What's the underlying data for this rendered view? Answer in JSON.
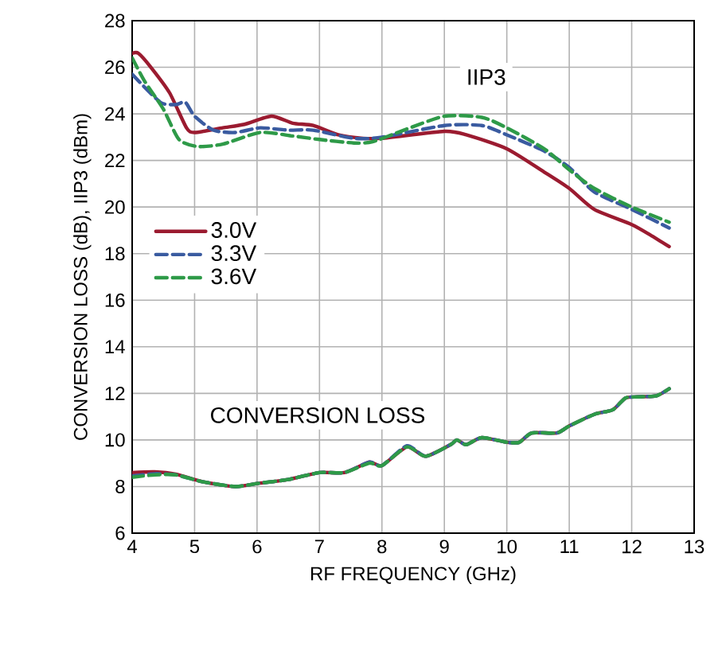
{
  "chart_data": {
    "type": "line",
    "xlabel": "RF FREQUENCY (GHz)",
    "ylabel": "CONVERSION LOSS (dB), IIP3 (dBm)",
    "xlim": [
      4,
      13
    ],
    "ylim": [
      6,
      28
    ],
    "xticks": [
      4,
      5,
      6,
      7,
      8,
      9,
      10,
      11,
      12,
      13
    ],
    "yticks": [
      6,
      8,
      10,
      12,
      14,
      16,
      18,
      20,
      22,
      24,
      26,
      28
    ],
    "grid": true,
    "legend": "left",
    "annotations": [
      "IIP3",
      "CONVERSION LOSS"
    ],
    "series": [
      {
        "name": "3.0V",
        "color": "#9b1b30",
        "line_style": "solid",
        "x": [
          4.0,
          4.1,
          4.3,
          4.6,
          4.87,
          5.0,
          5.45,
          5.8,
          6.23,
          6.57,
          6.9,
          7.3,
          7.7,
          8.0,
          9.0,
          9.35,
          10.0,
          10.6,
          11.0,
          11.4,
          12.0,
          12.3,
          12.6
        ],
        "values": [
          26.6,
          26.6,
          26.0,
          24.9,
          23.4,
          23.2,
          23.4,
          23.55,
          23.9,
          23.6,
          23.5,
          23.1,
          22.95,
          22.95,
          23.25,
          23.1,
          22.5,
          21.5,
          20.8,
          19.9,
          19.25,
          18.8,
          18.3
        ]
      },
      {
        "name": "3.3V",
        "color": "#3a5ba0",
        "line_style": "dashed",
        "x": [
          4.0,
          4.45,
          4.7,
          4.85,
          5.0,
          5.3,
          5.65,
          6.05,
          6.5,
          6.9,
          7.55,
          8.0,
          9.0,
          9.6,
          10.0,
          10.6,
          11.0,
          11.4,
          12.0,
          12.6
        ],
        "values": [
          25.7,
          24.5,
          24.4,
          24.5,
          23.9,
          23.3,
          23.2,
          23.4,
          23.3,
          23.3,
          22.95,
          23.0,
          23.5,
          23.5,
          23.1,
          22.4,
          21.7,
          20.65,
          19.9,
          19.1
        ]
      },
      {
        "name": "3.6V",
        "color": "#2e9a48",
        "line_style": "dashed",
        "x": [
          4.0,
          4.2,
          4.5,
          4.75,
          5.05,
          5.45,
          6.05,
          6.57,
          7.0,
          7.55,
          7.85,
          8.35,
          9.0,
          9.6,
          10.0,
          10.6,
          11.0,
          11.4,
          12.0,
          12.6
        ],
        "values": [
          26.4,
          25.4,
          24.2,
          22.9,
          22.6,
          22.7,
          23.2,
          23.05,
          22.9,
          22.75,
          22.8,
          23.3,
          23.9,
          23.85,
          23.4,
          22.5,
          21.6,
          20.8,
          20.0,
          19.35
        ]
      },
      {
        "color": "#9b1b30",
        "line_style": "solid",
        "x": [
          4.0,
          4.36,
          4.7,
          5.14,
          5.65,
          6.0,
          6.5,
          7.0,
          7.4,
          7.8,
          8.0,
          8.4,
          8.7,
          9.1,
          9.2,
          9.35,
          9.6,
          10.0,
          10.2,
          10.4,
          10.8,
          11.0,
          11.4,
          11.7,
          11.9,
          12.1,
          12.4,
          12.6
        ],
        "values": [
          8.6,
          8.63,
          8.53,
          8.2,
          8.0,
          8.13,
          8.3,
          8.6,
          8.6,
          9.05,
          8.9,
          9.7,
          9.3,
          9.8,
          10.0,
          9.8,
          10.1,
          9.9,
          9.9,
          10.3,
          10.3,
          10.6,
          11.1,
          11.3,
          11.8,
          11.85,
          11.9,
          12.2
        ]
      },
      {
        "color": "#3a5ba0",
        "line_style": "dashed",
        "x": [
          4.0,
          4.36,
          4.7,
          5.14,
          5.65,
          6.0,
          6.5,
          7.0,
          7.4,
          7.8,
          8.0,
          8.4,
          8.7,
          9.1,
          9.2,
          9.35,
          9.6,
          10.0,
          10.2,
          10.4,
          10.8,
          11.0,
          11.4,
          11.7,
          11.9,
          12.1,
          12.4,
          12.6
        ],
        "values": [
          8.45,
          8.55,
          8.5,
          8.2,
          8.0,
          8.13,
          8.3,
          8.6,
          8.6,
          9.05,
          8.9,
          9.75,
          9.3,
          9.8,
          10.0,
          9.8,
          10.1,
          9.9,
          9.9,
          10.3,
          10.3,
          10.6,
          11.1,
          11.3,
          11.8,
          11.85,
          11.9,
          12.2
        ]
      },
      {
        "color": "#2e9a48",
        "line_style": "dashed",
        "x": [
          4.0,
          4.36,
          4.7,
          5.14,
          5.65,
          6.0,
          6.5,
          7.0,
          7.4,
          7.8,
          8.0,
          8.4,
          8.7,
          9.1,
          9.2,
          9.35,
          9.6,
          10.0,
          10.2,
          10.4,
          10.8,
          11.0,
          11.4,
          11.7,
          11.9,
          12.1,
          12.4,
          12.6
        ],
        "values": [
          8.4,
          8.5,
          8.5,
          8.2,
          8.0,
          8.13,
          8.3,
          8.6,
          8.6,
          9.0,
          8.9,
          9.7,
          9.3,
          9.8,
          10.0,
          9.8,
          10.1,
          9.9,
          9.9,
          10.3,
          10.3,
          10.6,
          11.1,
          11.3,
          11.8,
          11.85,
          11.9,
          12.2
        ]
      }
    ]
  }
}
